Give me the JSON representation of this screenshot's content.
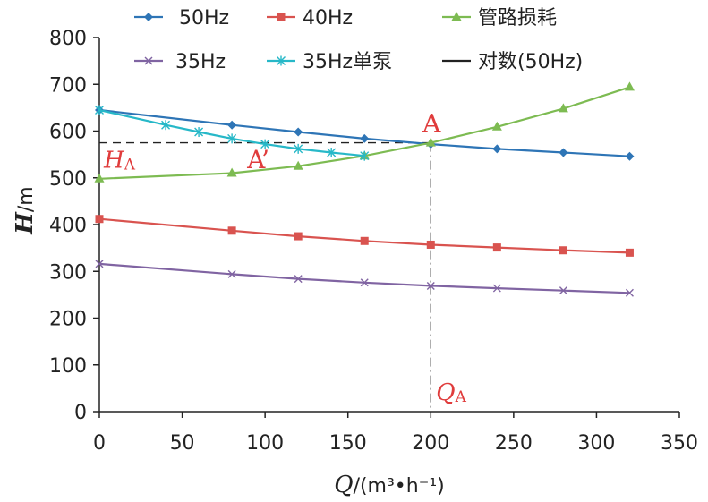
{
  "chart_data": {
    "type": "line",
    "xlim": [
      0,
      350
    ],
    "ylim": [
      0,
      800
    ],
    "x_ticks": [
      0,
      50,
      100,
      150,
      200,
      250,
      300,
      350
    ],
    "y_ticks": [
      0,
      100,
      200,
      300,
      400,
      500,
      600,
      700,
      800
    ],
    "x_tick_labels": [
      "0",
      "50",
      "100",
      "150",
      "200",
      "250",
      "300",
      "350"
    ],
    "y_tick_labels": [
      "0",
      "100",
      "200",
      "300",
      "400",
      "500",
      "600",
      "700",
      "800"
    ],
    "xlabel_var": "Q",
    "xlabel_unit": "/(m³•h⁻¹)",
    "ylabel_var": "H",
    "ylabel_unit": "/m",
    "grid": false,
    "legend_position": "top",
    "series": [
      {
        "name": "50Hz",
        "color": "#2e75b6",
        "marker": "diamond",
        "x": [
          0,
          80,
          120,
          160,
          200,
          240,
          280,
          320
        ],
        "y": [
          645,
          613,
          598,
          584,
          572,
          562,
          554,
          546
        ]
      },
      {
        "name": "40Hz",
        "color": "#d9534f",
        "marker": "square",
        "x": [
          0,
          80,
          120,
          160,
          200,
          240,
          280,
          320
        ],
        "y": [
          412,
          387,
          375,
          365,
          357,
          351,
          345,
          340
        ]
      },
      {
        "name": "管路损耗",
        "color": "#7dbb52",
        "marker": "triangle",
        "x": [
          0,
          80,
          120,
          160,
          200,
          240,
          280,
          320
        ],
        "y": [
          498,
          510,
          525,
          547,
          575,
          609,
          648,
          694
        ]
      },
      {
        "name": "35Hz",
        "color": "#8064a2",
        "marker": "x",
        "x": [
          0,
          80,
          120,
          160,
          200,
          240,
          280,
          320
        ],
        "y": [
          316,
          294,
          284,
          276,
          269,
          264,
          259,
          254
        ]
      },
      {
        "name": "35Hz单泵",
        "color": "#27b8c8",
        "marker": "star",
        "x": [
          0,
          40,
          60,
          80,
          100,
          120,
          140,
          160
        ],
        "y": [
          645,
          613,
          598,
          584,
          572,
          562,
          554,
          547
        ]
      },
      {
        "name": "对数(50Hz)",
        "color": "#222222",
        "marker": "none",
        "style": "dashed",
        "x": [
          0,
          200
        ],
        "y": [
          575,
          575
        ]
      }
    ],
    "annotations": {
      "point_A": {
        "label": "A",
        "x": 200,
        "y": 575
      },
      "point_A_prime": {
        "label": "A’",
        "x": 97,
        "y": 572
      },
      "h_label": {
        "main": "H",
        "sub": "A",
        "y": 575
      },
      "q_label": {
        "main": "Q",
        "sub": "A",
        "x": 200
      }
    }
  }
}
